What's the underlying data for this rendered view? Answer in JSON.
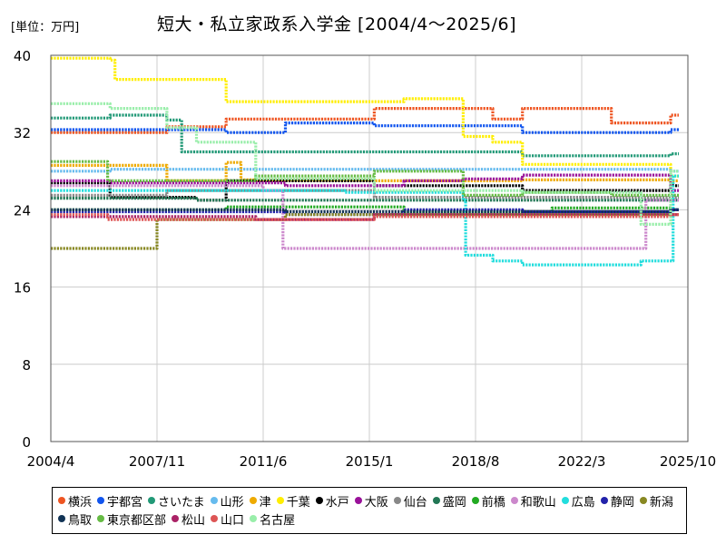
{
  "unit_label": "[単位：万円]",
  "title": "短大・私立家政系入学金 [2004/4～2025/6]",
  "chart_data": {
    "type": "line",
    "title": "短大・私立家政系入学金 [2004/4～2025/6]",
    "unit": "[単位：万円]",
    "xlabel": "",
    "ylabel": "",
    "x_ticks": [
      "2004/4",
      "2007/11",
      "2011/6",
      "2015/1",
      "2018/8",
      "2022/3",
      "2025/10"
    ],
    "xlim": [
      "2004/4",
      "2025/10"
    ],
    "y_ticks": [
      0,
      8,
      16,
      24,
      32,
      40
    ],
    "ylim": [
      0,
      40
    ],
    "grid": true,
    "legend_position": "bottom",
    "series": [
      {
        "name": "横浜",
        "color": "#ee5522",
        "points": [
          [
            "2004/4",
            32.0
          ],
          [
            "2008/3",
            32.6
          ],
          [
            "2010/3",
            33.4
          ],
          [
            "2015/3",
            34.5
          ],
          [
            "2019/3",
            33.4
          ],
          [
            "2020/3",
            34.5
          ],
          [
            "2023/3",
            33.0
          ],
          [
            "2025/3",
            33.8
          ]
        ]
      },
      {
        "name": "宇都宮",
        "color": "#1155ee",
        "points": [
          [
            "2004/4",
            32.3
          ],
          [
            "2010/3",
            32.0
          ],
          [
            "2012/3",
            33.0
          ],
          [
            "2015/3",
            32.7
          ],
          [
            "2020/3",
            32.0
          ],
          [
            "2025/3",
            32.3
          ]
        ]
      },
      {
        "name": "さいたま",
        "color": "#229977",
        "points": [
          [
            "2004/4",
            33.5
          ],
          [
            "2006/4",
            33.8
          ],
          [
            "2008/3",
            33.3
          ],
          [
            "2008/9",
            30.0
          ],
          [
            "2020/3",
            29.6
          ],
          [
            "2025/3",
            29.8
          ]
        ]
      },
      {
        "name": "山形",
        "color": "#66bbee",
        "points": [
          [
            "2004/4",
            28.0
          ],
          [
            "2006/4",
            28.2
          ],
          [
            "2025/3",
            28.0
          ]
        ]
      },
      {
        "name": "津",
        "color": "#eeaa00",
        "points": [
          [
            "2004/4",
            28.6
          ],
          [
            "2008/3",
            27.0
          ],
          [
            "2010/3",
            28.9
          ],
          [
            "2010/9",
            27.1
          ],
          [
            "2015/3",
            27.0
          ],
          [
            "2020/3",
            27.1
          ],
          [
            "2025/3",
            27.0
          ]
        ]
      },
      {
        "name": "千葉",
        "color": "#ffee00",
        "points": [
          [
            "2004/4",
            39.7
          ],
          [
            "2006/4",
            39.5
          ],
          [
            "2006/6",
            37.5
          ],
          [
            "2010/3",
            35.2
          ],
          [
            "2016/3",
            35.5
          ],
          [
            "2018/3",
            31.6
          ],
          [
            "2019/3",
            31.0
          ],
          [
            "2020/3",
            28.7
          ],
          [
            "2025/3",
            27.5
          ]
        ]
      },
      {
        "name": "水戸",
        "color": "#000000",
        "points": [
          [
            "2004/4",
            26.8
          ],
          [
            "2006/4",
            25.3
          ],
          [
            "2009/3",
            25.0
          ],
          [
            "2010/3",
            27.0
          ],
          [
            "2015/3",
            26.5
          ],
          [
            "2020/3",
            26.0
          ],
          [
            "2025/3",
            26.5
          ]
        ]
      },
      {
        "name": "大阪",
        "color": "#991199",
        "points": [
          [
            "2004/4",
            27.0
          ],
          [
            "2006/4",
            26.8
          ],
          [
            "2012/3",
            26.5
          ],
          [
            "2016/3",
            27.0
          ],
          [
            "2018/3",
            27.2
          ],
          [
            "2020/3",
            27.6
          ],
          [
            "2025/3",
            26.0
          ]
        ]
      },
      {
        "name": "仙台",
        "color": "#888888",
        "points": [
          [
            "2004/4",
            25.5
          ],
          [
            "2008/3",
            26.0
          ],
          [
            "2015/3",
            25.3
          ],
          [
            "2025/3",
            25.3
          ]
        ]
      },
      {
        "name": "盛岡",
        "color": "#227755",
        "points": [
          [
            "2004/4",
            25.2
          ],
          [
            "2009/3",
            25.0
          ],
          [
            "2025/3",
            25.0
          ]
        ]
      },
      {
        "name": "前橋",
        "color": "#22aa22",
        "points": [
          [
            "2004/4",
            24.0
          ],
          [
            "2010/3",
            24.3
          ],
          [
            "2016/3",
            23.8
          ],
          [
            "2021/3",
            24.2
          ],
          [
            "2025/3",
            24.0
          ]
        ]
      },
      {
        "name": "和歌山",
        "color": "#cc88cc",
        "points": [
          [
            "2004/4",
            26.5
          ],
          [
            "2011/6",
            26.0
          ],
          [
            "2012/2",
            20.0
          ],
          [
            "2024/2",
            20.0
          ],
          [
            "2024/5",
            25.0
          ],
          [
            "2025/3",
            25.0
          ]
        ]
      },
      {
        "name": "広島",
        "color": "#22dddd",
        "points": [
          [
            "2004/4",
            26.0
          ],
          [
            "2014/3",
            25.8
          ],
          [
            "2018/3",
            25.0
          ],
          [
            "2018/4",
            19.3
          ],
          [
            "2019/3",
            18.7
          ],
          [
            "2020/3",
            18.3
          ],
          [
            "2024/3",
            18.7
          ],
          [
            "2025/2",
            18.7
          ],
          [
            "2025/4",
            27.5
          ]
        ]
      },
      {
        "name": "静岡",
        "color": "#2222aa",
        "points": [
          [
            "2004/4",
            23.8
          ],
          [
            "2012/3",
            23.5
          ],
          [
            "2016/3",
            24.0
          ],
          [
            "2020/3",
            23.8
          ],
          [
            "2025/3",
            24.0
          ]
        ]
      },
      {
        "name": "新潟",
        "color": "#888822",
        "points": [
          [
            "2004/4",
            20.0
          ],
          [
            "2007/9",
            20.0
          ],
          [
            "2007/11",
            23.0
          ],
          [
            "2012/3",
            23.5
          ],
          [
            "2025/3",
            23.5
          ]
        ]
      },
      {
        "name": "鳥取",
        "color": "#113355",
        "points": [
          [
            "2004/4",
            24.0
          ],
          [
            "2012/3",
            23.8
          ],
          [
            "2025/3",
            24.0
          ]
        ]
      },
      {
        "name": "東京都区部",
        "color": "#66bb44",
        "points": [
          [
            "2004/4",
            29.0
          ],
          [
            "2006/3",
            27.0
          ],
          [
            "2011/3",
            27.5
          ],
          [
            "2015/3",
            28.0
          ],
          [
            "2018/3",
            25.5
          ],
          [
            "2020/3",
            25.8
          ],
          [
            "2023/3",
            25.5
          ],
          [
            "2025/3",
            25.5
          ]
        ]
      },
      {
        "name": "松山",
        "color": "#aa2266",
        "points": [
          [
            "2004/4",
            23.3
          ],
          [
            "2011/3",
            23.0
          ],
          [
            "2015/3",
            23.5
          ],
          [
            "2025/3",
            23.5
          ]
        ]
      },
      {
        "name": "山口",
        "color": "#dd5555",
        "points": [
          [
            "2004/4",
            23.5
          ],
          [
            "2006/3",
            23.0
          ],
          [
            "2015/3",
            23.3
          ],
          [
            "2020/3",
            23.3
          ],
          [
            "2025/3",
            23.5
          ]
        ]
      },
      {
        "name": "名古屋",
        "color": "#99eeaa",
        "points": [
          [
            "2004/4",
            35.0
          ],
          [
            "2006/4",
            34.5
          ],
          [
            "2008/3",
            32.5
          ],
          [
            "2009/3",
            31.0
          ],
          [
            "2011/3",
            27.2
          ],
          [
            "2015/3",
            26.0
          ],
          [
            "2020/3",
            25.8
          ],
          [
            "2024/3",
            22.5
          ],
          [
            "2025/3",
            28.0
          ]
        ]
      }
    ]
  }
}
